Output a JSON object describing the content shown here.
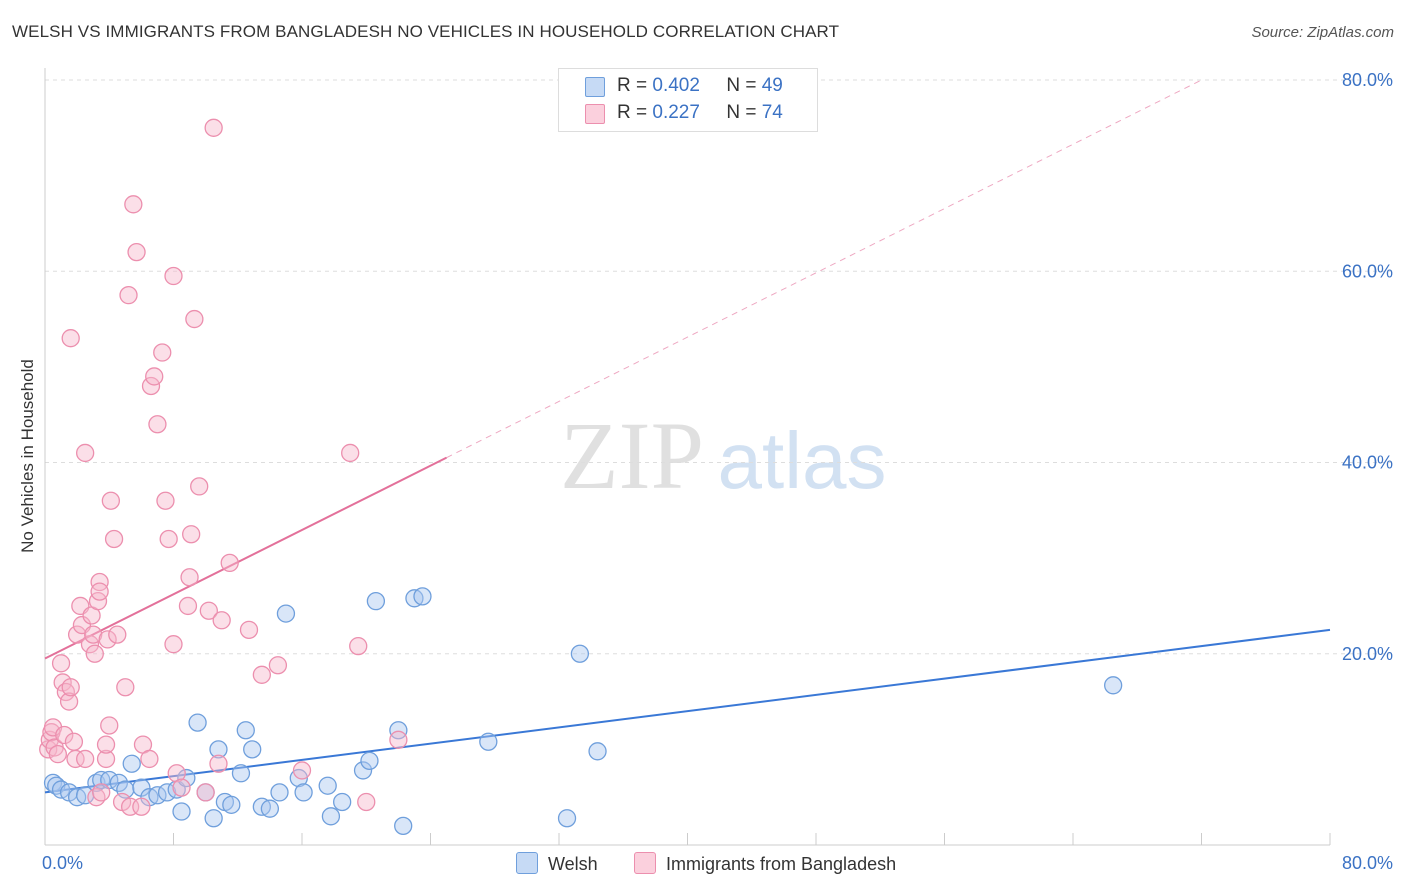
{
  "title": "WELSH VS IMMIGRANTS FROM BANGLADESH NO VEHICLES IN HOUSEHOLD CORRELATION CHART",
  "source": "Source: ZipAtlas.com",
  "watermark": {
    "zip": "ZIP",
    "atlas": "atlas"
  },
  "legend": {
    "rows": [
      {
        "r_label": "R =",
        "r_value": "0.402",
        "n_label": "N =",
        "n_value": "49"
      },
      {
        "r_label": "R =",
        "r_value": "0.227",
        "n_label": "N =",
        "n_value": "74"
      }
    ]
  },
  "colors": {
    "welsh_fill": "#aac8f0",
    "welsh_stroke": "#6f9fdc",
    "welsh_line": "#3a78d6",
    "bangla_fill": "#f7b8cb",
    "bangla_stroke": "#ec8fae",
    "bangla_line": "#e3709a",
    "tick_label": "#3b72c4",
    "grid": "#dddddd"
  },
  "chart_data": {
    "type": "scatter",
    "title": "WELSH VS IMMIGRANTS FROM BANGLADESH NO VEHICLES IN HOUSEHOLD CORRELATION CHART",
    "xlabel": "",
    "ylabel": "No Vehicles in Household",
    "xlim": [
      0,
      80
    ],
    "ylim": [
      0,
      80
    ],
    "x_tick_labels": [
      "0.0%",
      "80.0%"
    ],
    "y_ticks": [
      20,
      40,
      60,
      80
    ],
    "y_tick_labels": [
      "20.0%",
      "40.0%",
      "60.0%",
      "80.0%"
    ],
    "grid": true,
    "legend_placement": "bottom",
    "series": [
      {
        "name": "Welsh",
        "r": 0.402,
        "n": 49,
        "trend": {
          "x0": 0,
          "y0": 5.5,
          "x1": 80,
          "y1": 22.5,
          "solid_to": 80
        },
        "points": [
          [
            0.5,
            6.5
          ],
          [
            0.7,
            6.2
          ],
          [
            1.0,
            5.8
          ],
          [
            1.5,
            5.5
          ],
          [
            2.0,
            5.0
          ],
          [
            2.5,
            5.2
          ],
          [
            3.2,
            6.5
          ],
          [
            3.5,
            6.8
          ],
          [
            4.0,
            6.8
          ],
          [
            4.6,
            6.5
          ],
          [
            5.0,
            5.8
          ],
          [
            5.4,
            8.5
          ],
          [
            6.0,
            6.0
          ],
          [
            6.5,
            5.0
          ],
          [
            7.0,
            5.2
          ],
          [
            7.6,
            5.5
          ],
          [
            8.2,
            5.8
          ],
          [
            8.5,
            3.5
          ],
          [
            8.8,
            7.0
          ],
          [
            9.5,
            12.8
          ],
          [
            10.0,
            5.5
          ],
          [
            10.5,
            2.8
          ],
          [
            10.8,
            10.0
          ],
          [
            11.2,
            4.5
          ],
          [
            11.6,
            4.2
          ],
          [
            12.2,
            7.5
          ],
          [
            12.5,
            12.0
          ],
          [
            12.9,
            10.0
          ],
          [
            13.5,
            4.0
          ],
          [
            14.0,
            3.8
          ],
          [
            14.6,
            5.5
          ],
          [
            15.0,
            24.2
          ],
          [
            15.8,
            7.0
          ],
          [
            16.1,
            5.5
          ],
          [
            17.6,
            6.2
          ],
          [
            17.8,
            3.0
          ],
          [
            18.5,
            4.5
          ],
          [
            19.8,
            7.8
          ],
          [
            20.2,
            8.8
          ],
          [
            20.6,
            25.5
          ],
          [
            22.0,
            12.0
          ],
          [
            22.3,
            2.0
          ],
          [
            23.0,
            25.8
          ],
          [
            23.5,
            26.0
          ],
          [
            27.6,
            10.8
          ],
          [
            32.5,
            2.8
          ],
          [
            33.3,
            20.0
          ],
          [
            34.4,
            9.8
          ],
          [
            66.5,
            16.7
          ]
        ]
      },
      {
        "name": "Immigrants from Bangladesh",
        "r": 0.227,
        "n": 74,
        "trend": {
          "x0": 0,
          "y0": 19.5,
          "x1": 72,
          "y1": 80.0,
          "solid_to": 25
        },
        "points": [
          [
            0.2,
            10.0
          ],
          [
            0.3,
            11.0
          ],
          [
            0.4,
            11.8
          ],
          [
            0.5,
            12.3
          ],
          [
            0.6,
            10.2
          ],
          [
            0.8,
            9.5
          ],
          [
            1.0,
            19.0
          ],
          [
            1.1,
            17.0
          ],
          [
            1.2,
            11.5
          ],
          [
            1.3,
            16.0
          ],
          [
            1.5,
            15.0
          ],
          [
            1.6,
            16.5
          ],
          [
            1.6,
            53.0
          ],
          [
            1.8,
            10.8
          ],
          [
            1.9,
            9.0
          ],
          [
            2.0,
            22.0
          ],
          [
            2.2,
            25.0
          ],
          [
            2.3,
            23.0
          ],
          [
            2.5,
            41.0
          ],
          [
            2.5,
            9.0
          ],
          [
            2.8,
            21.0
          ],
          [
            2.9,
            24.0
          ],
          [
            3.0,
            22.0
          ],
          [
            3.1,
            20.0
          ],
          [
            3.2,
            5.0
          ],
          [
            3.3,
            25.5
          ],
          [
            3.4,
            27.5
          ],
          [
            3.4,
            26.5
          ],
          [
            3.5,
            5.5
          ],
          [
            3.8,
            9.0
          ],
          [
            3.8,
            10.5
          ],
          [
            3.9,
            21.5
          ],
          [
            4.0,
            12.5
          ],
          [
            4.1,
            36.0
          ],
          [
            4.3,
            32.0
          ],
          [
            4.5,
            22.0
          ],
          [
            4.8,
            4.5
          ],
          [
            5.0,
            16.5
          ],
          [
            5.2,
            57.5
          ],
          [
            5.3,
            4.0
          ],
          [
            5.5,
            67.0
          ],
          [
            5.7,
            62.0
          ],
          [
            6.0,
            4.0
          ],
          [
            6.1,
            10.5
          ],
          [
            6.5,
            9.0
          ],
          [
            6.6,
            48.0
          ],
          [
            6.8,
            49.0
          ],
          [
            7.0,
            44.0
          ],
          [
            7.3,
            51.5
          ],
          [
            7.5,
            36.0
          ],
          [
            7.7,
            32.0
          ],
          [
            8.0,
            59.5
          ],
          [
            8.0,
            21.0
          ],
          [
            8.2,
            7.5
          ],
          [
            8.5,
            6.0
          ],
          [
            8.9,
            25.0
          ],
          [
            9.0,
            28.0
          ],
          [
            9.1,
            32.5
          ],
          [
            9.3,
            55.0
          ],
          [
            9.6,
            37.5
          ],
          [
            10.0,
            5.5
          ],
          [
            10.2,
            24.5
          ],
          [
            10.5,
            75.0
          ],
          [
            10.8,
            8.5
          ],
          [
            11.0,
            23.5
          ],
          [
            11.5,
            29.5
          ],
          [
            12.7,
            22.5
          ],
          [
            13.5,
            17.8
          ],
          [
            14.5,
            18.8
          ],
          [
            16.0,
            7.8
          ],
          [
            19.0,
            41.0
          ],
          [
            19.5,
            20.8
          ],
          [
            20.0,
            4.5
          ],
          [
            22.0,
            11.0
          ]
        ]
      }
    ]
  },
  "bottom_legend": {
    "items": [
      {
        "label": "Welsh"
      },
      {
        "label": "Immigrants from Bangladesh"
      }
    ]
  }
}
